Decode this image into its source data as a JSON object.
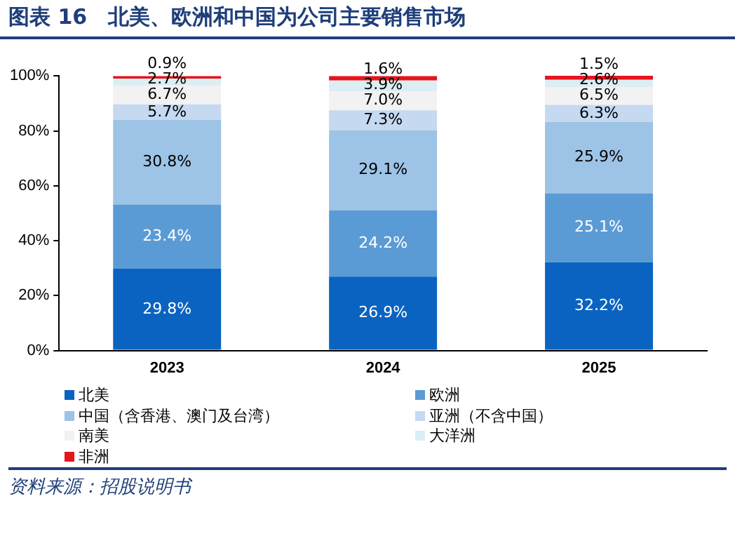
{
  "chart_data": {
    "type": "bar",
    "title": "图表 16　北美、欧洲和中国为公司主要销售市场",
    "categories": [
      "2023",
      "2024",
      "2025"
    ],
    "series": [
      {
        "name": "北美",
        "color": "#0b63c1",
        "values": [
          29.8,
          26.9,
          32.2
        ]
      },
      {
        "name": "欧洲",
        "color": "#5b9bd5",
        "values": [
          23.4,
          24.2,
          25.1
        ]
      },
      {
        "name": "中国（含香港、澳门及台湾）",
        "color": "#9dc3e6",
        "values": [
          30.8,
          29.1,
          25.9
        ]
      },
      {
        "name": "亚洲（不含中国）",
        "color": "#c5d9f1",
        "values": [
          5.7,
          7.3,
          6.3
        ]
      },
      {
        "name": "南美",
        "color": "#f2f2f2",
        "values": [
          6.7,
          7.0,
          6.5
        ]
      },
      {
        "name": "大洋洲",
        "color": "#dbeef4",
        "values": [
          2.7,
          3.9,
          2.6
        ]
      },
      {
        "name": "非洲",
        "color": "#e8141b",
        "values": [
          0.9,
          1.6,
          1.5
        ]
      }
    ],
    "stacked": true,
    "ylim": [
      0,
      100.1
    ],
    "yticks": [
      {
        "value": 0,
        "label": "0%"
      },
      {
        "value": 20,
        "label": "20%"
      },
      {
        "value": 40,
        "label": "40%"
      },
      {
        "value": 60,
        "label": "60%"
      },
      {
        "value": 80,
        "label": "80%"
      },
      {
        "value": 100,
        "label": "100%"
      }
    ],
    "value_labels": [
      [
        "29.8%",
        "26.9%",
        "32.2%"
      ],
      [
        "23.4%",
        "24.2%",
        "25.1%"
      ],
      [
        "30.8%",
        "29.1%",
        "25.9%"
      ],
      [
        "5.7%",
        "7.3%",
        "6.3%"
      ],
      [
        "6.7%",
        "7.0%",
        "6.5%"
      ],
      [
        "2.7%",
        "3.9%",
        "2.6%"
      ],
      [
        "0.9%",
        "1.6%",
        "1.5%"
      ]
    ],
    "grid": false,
    "legend": "bottom",
    "annotations": [
      "资料来源：招股说明书"
    ]
  }
}
